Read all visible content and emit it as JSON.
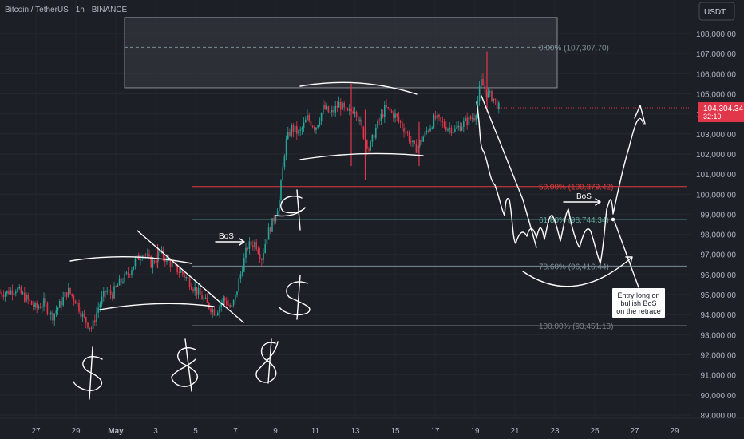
{
  "header": {
    "symbol_title": "Bitcoin / TetherUS · 1h · BINANCE",
    "currency": "USDT"
  },
  "price_tag": {
    "price": "104,304.34",
    "countdown": "32:10",
    "value": 104304.34,
    "color": "#e2364b"
  },
  "colors": {
    "background": "#1d1f27",
    "up_candle": "#26a69a",
    "down_candle": "#e2364b",
    "fib_50": "#e03b3b",
    "fib_618": "#5ea59b",
    "fib_786": "#7c8f96",
    "fib_100": "#7b7e85",
    "zone_fill": "#3a3c44",
    "drawing": "#ffffff"
  },
  "chart_data": {
    "type": "candlestick",
    "title": "Bitcoin / TetherUS · 1h · BINANCE",
    "y_axis": {
      "unit": "USDT",
      "range": [
        88500,
        109000
      ],
      "ticks": [
        108000,
        107000,
        106000,
        105000,
        104000,
        103000,
        102000,
        101000,
        100000,
        99000,
        98000,
        97000,
        96000,
        95000,
        94000,
        93000,
        92000,
        91000,
        90000,
        89000
      ],
      "tick_labels": [
        "108,000.00",
        "107,000.00",
        "106,000.00",
        "105,000.00",
        "104,000.00",
        "103,000.00",
        "102,000.00",
        "101,000.00",
        "100,000.00",
        "99,000.00",
        "98,000.00",
        "97,000.00",
        "96,000.00",
        "95,000.00",
        "94,000.00",
        "93,000.00",
        "92,000.00",
        "91,000.00",
        "90,000.00",
        "89,000.00"
      ],
      "position": "right"
    },
    "x_axis": {
      "tick_labels": [
        "27",
        "29",
        "May",
        "3",
        "5",
        "7",
        "9",
        "11",
        "13",
        "15",
        "17",
        "19",
        "21",
        "23",
        "25",
        "27",
        "29"
      ],
      "tick_days": [
        -4,
        -2,
        0,
        2,
        4,
        6,
        8,
        10,
        12,
        14,
        16,
        18,
        20,
        22,
        24,
        26,
        28
      ]
    },
    "price_path": [
      [
        -5.5,
        95100
      ],
      [
        -5,
        95300
      ],
      [
        -4.5,
        94800
      ],
      [
        -4,
        94300
      ],
      [
        -3.6,
        94600
      ],
      [
        -3.2,
        93900
      ],
      [
        -2.8,
        94500
      ],
      [
        -2.4,
        95200
      ],
      [
        -2,
        94700
      ],
      [
        -1.6,
        93800
      ],
      [
        -1.2,
        93300
      ],
      [
        -0.9,
        94300
      ],
      [
        -0.5,
        95200
      ],
      [
        -0.2,
        95000
      ],
      [
        0.2,
        95600
      ],
      [
        0.6,
        96000
      ],
      [
        1,
        96700
      ],
      [
        1.4,
        97100
      ],
      [
        1.8,
        96500
      ],
      [
        2.2,
        97100
      ],
      [
        2.6,
        96700
      ],
      [
        3,
        96300
      ],
      [
        3.4,
        96000
      ],
      [
        3.8,
        95500
      ],
      [
        4.2,
        95000
      ],
      [
        4.6,
        94500
      ],
      [
        5,
        94100
      ],
      [
        5.4,
        94800
      ],
      [
        5.8,
        94300
      ],
      [
        6.0,
        94900
      ],
      [
        6.2,
        95800
      ],
      [
        6.6,
        97400
      ],
      [
        7,
        97600
      ],
      [
        7.3,
        96800
      ],
      [
        7.6,
        98000
      ],
      [
        7.9,
        98700
      ],
      [
        8.2,
        99700
      ],
      [
        8.5,
        102500
      ],
      [
        8.8,
        103300
      ],
      [
        9.2,
        103000
      ],
      [
        9.6,
        103800
      ],
      [
        10,
        103300
      ],
      [
        10.4,
        104300
      ],
      [
        10.8,
        104000
      ],
      [
        11.2,
        104500
      ],
      [
        11.6,
        104000
      ],
      [
        12,
        104300
      ],
      [
        12.4,
        103000
      ],
      [
        12.7,
        102200
      ],
      [
        13,
        103200
      ],
      [
        13.5,
        104300
      ],
      [
        14,
        103900
      ],
      [
        14.5,
        103200
      ],
      [
        15,
        102200
      ],
      [
        15.5,
        103000
      ],
      [
        16,
        103800
      ],
      [
        16.5,
        103400
      ],
      [
        17,
        103200
      ],
      [
        17.5,
        103600
      ],
      [
        18,
        103900
      ],
      [
        18.3,
        105600
      ],
      [
        18.6,
        105000
      ],
      [
        18.9,
        104800
      ],
      [
        19.2,
        104300
      ]
    ],
    "highlighted_candles": [
      {
        "day": 2.1,
        "low": 96300,
        "high": 97500
      },
      {
        "day": 11.8,
        "low": 101400,
        "high": 105500
      },
      {
        "day": 12.5,
        "low": 100700,
        "high": 104200
      },
      {
        "day": 15.2,
        "low": 101400,
        "high": 103600
      },
      {
        "day": 18.6,
        "low": 104100,
        "high": 107100
      }
    ],
    "zone": {
      "from_day": 4.7,
      "to_day": 34,
      "price_low": 105300,
      "price_high": 108800
    },
    "fib_levels": [
      {
        "label": "0.00%",
        "value_text": "(107,307.70)",
        "price": 107307.7,
        "style": "dashed"
      },
      {
        "label": "50.00%",
        "value_text": "(100,379.42)",
        "price": 100379.42,
        "style": "solid"
      },
      {
        "label": "61.80%",
        "value_text": "(98,744.34)",
        "price": 98744.34,
        "style": "solid"
      },
      {
        "label": "78.60%",
        "value_text": "(96,416.44)",
        "price": 96416.44,
        "style": "solid"
      },
      {
        "label": "100.00%",
        "value_text": "(93,451.13)",
        "price": 93451.13,
        "style": "solid"
      }
    ],
    "fib_from_day": 4.0,
    "fib_to_day": 23.6,
    "annotations": {
      "bos_left": "BoS",
      "bos_right": "BoS",
      "entry_note": [
        "Entry long on",
        "bullish BoS",
        "on the retrace"
      ]
    }
  }
}
